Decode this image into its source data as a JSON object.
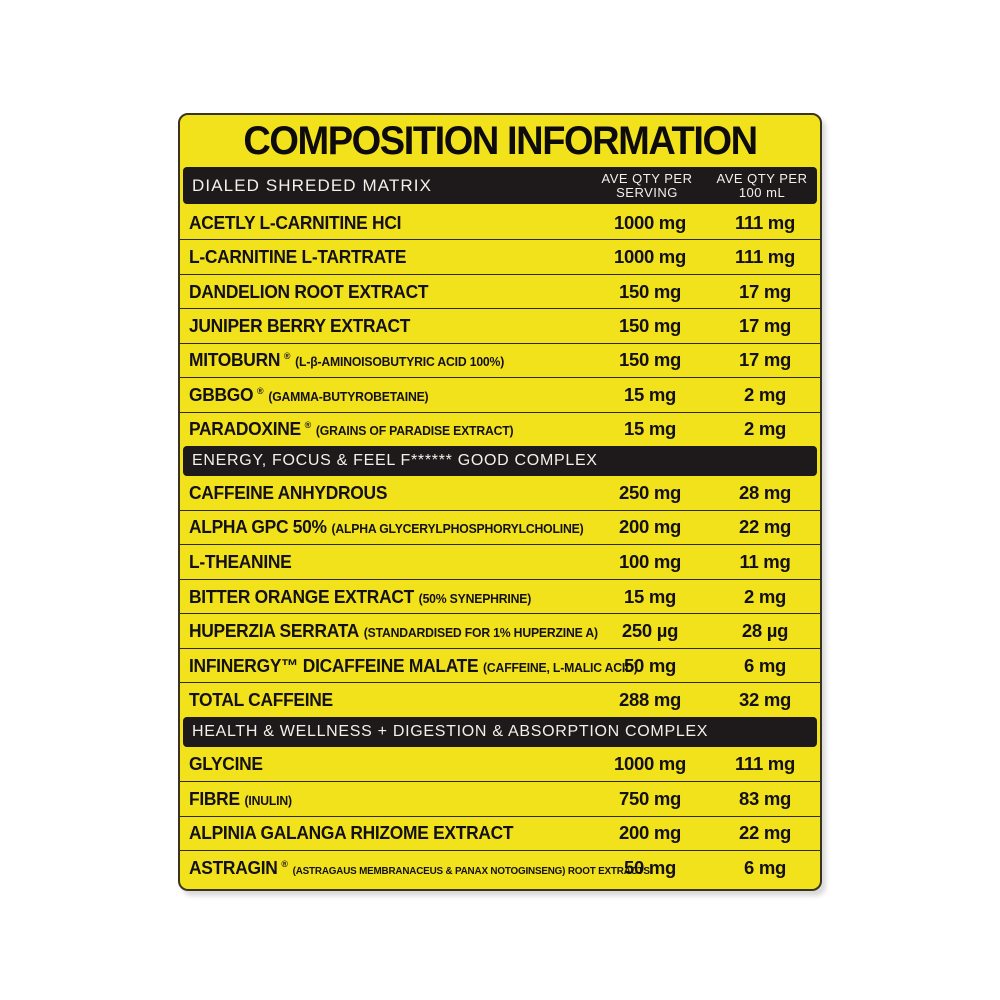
{
  "title": "COMPOSITION INFORMATION",
  "colors": {
    "label_yellow": "#f2e21c",
    "bar_black": "#1e1a1b",
    "bar_text": "#f3f0ea",
    "ink": "#141116"
  },
  "table_header": {
    "matrix_label": "DIALED SHREDED MATRIX",
    "col_serving_line1": "AVE QTY PER",
    "col_serving_line2": "SERVING",
    "col_100ml_line1": "AVE QTY PER",
    "col_100ml_line2": "100 mL"
  },
  "sections": [
    {
      "header": null,
      "rows": [
        {
          "name": "ACETLY L-CARNITINE HCI",
          "reg": false,
          "detail": "",
          "serving": "1000 mg",
          "per_100ml": "111 mg"
        },
        {
          "name": "L-CARNITINE L-TARTRATE",
          "reg": false,
          "detail": "",
          "serving": "1000 mg",
          "per_100ml": "111 mg"
        },
        {
          "name": "DANDELION ROOT EXTRACT",
          "reg": false,
          "detail": "",
          "serving": "150 mg",
          "per_100ml": "17 mg"
        },
        {
          "name": "JUNIPER BERRY EXTRACT",
          "reg": false,
          "detail": "",
          "serving": "150 mg",
          "per_100ml": "17 mg"
        },
        {
          "name": "MITOBURN",
          "reg": true,
          "detail": "(L-β-AMINOISOBUTYRIC ACID 100%)",
          "serving": "150 mg",
          "per_100ml": "17 mg"
        },
        {
          "name": "GBBGO",
          "reg": true,
          "detail": "(GAMMA-BUTYROBETAINE)",
          "serving": "15 mg",
          "per_100ml": "2 mg"
        },
        {
          "name": "PARADOXINE",
          "reg": true,
          "detail": "(GRAINS OF PARADISE EXTRACT)",
          "serving": "15 mg",
          "per_100ml": "2 mg"
        }
      ]
    },
    {
      "header": "ENERGY, FOCUS & FEEL F****** GOOD COMPLEX",
      "rows": [
        {
          "name": "CAFFEINE ANHYDROUS",
          "reg": false,
          "detail": "",
          "serving": "250 mg",
          "per_100ml": "28 mg"
        },
        {
          "name": "ALPHA GPC 50%",
          "reg": false,
          "detail": "(ALPHA GLYCERYLPHOSPHORYLCHOLINE)",
          "serving": "200 mg",
          "per_100ml": "22 mg"
        },
        {
          "name": "L-THEANINE",
          "reg": false,
          "detail": "",
          "serving": "100 mg",
          "per_100ml": "11 mg"
        },
        {
          "name": "BITTER ORANGE EXTRACT",
          "reg": false,
          "detail": "(50% SYNEPHRINE)",
          "serving": "15 mg",
          "per_100ml": "2 mg"
        },
        {
          "name": "HUPERZIA SERRATA",
          "reg": false,
          "detail": "(STANDARDISED FOR 1% HUPERZINE A)",
          "serving": "250 µg",
          "per_100ml": "28 µg"
        },
        {
          "name": "INFINERGY™ DICAFFEINE MALATE",
          "reg": false,
          "detail": "(CAFFEINE, L-MALIC ACID)",
          "serving": "50 mg",
          "per_100ml": "6 mg"
        },
        {
          "name": "TOTAL CAFFEINE",
          "reg": false,
          "detail": "",
          "serving": "288 mg",
          "per_100ml": "32 mg"
        }
      ]
    },
    {
      "header": "HEALTH & WELLNESS + DIGESTION & ABSORPTION COMPLEX",
      "rows": [
        {
          "name": "GLYCINE",
          "reg": false,
          "detail": "",
          "serving": "1000 mg",
          "per_100ml": "111 mg"
        },
        {
          "name": "FIBRE",
          "reg": false,
          "detail": "(INULIN)",
          "serving": "750 mg",
          "per_100ml": "83 mg"
        },
        {
          "name": "ALPINIA GALANGA RHIZOME EXTRACT",
          "reg": false,
          "detail": "",
          "serving": "200 mg",
          "per_100ml": "22 mg"
        },
        {
          "name": "ASTRAGIN",
          "reg": true,
          "detail": "(ASTRAGAUS MEMBRANACEUS & PANAX NOTOGINSENG) ROOT EXTRACTS",
          "serving": "50 mg",
          "per_100ml": "6 mg"
        }
      ]
    }
  ]
}
